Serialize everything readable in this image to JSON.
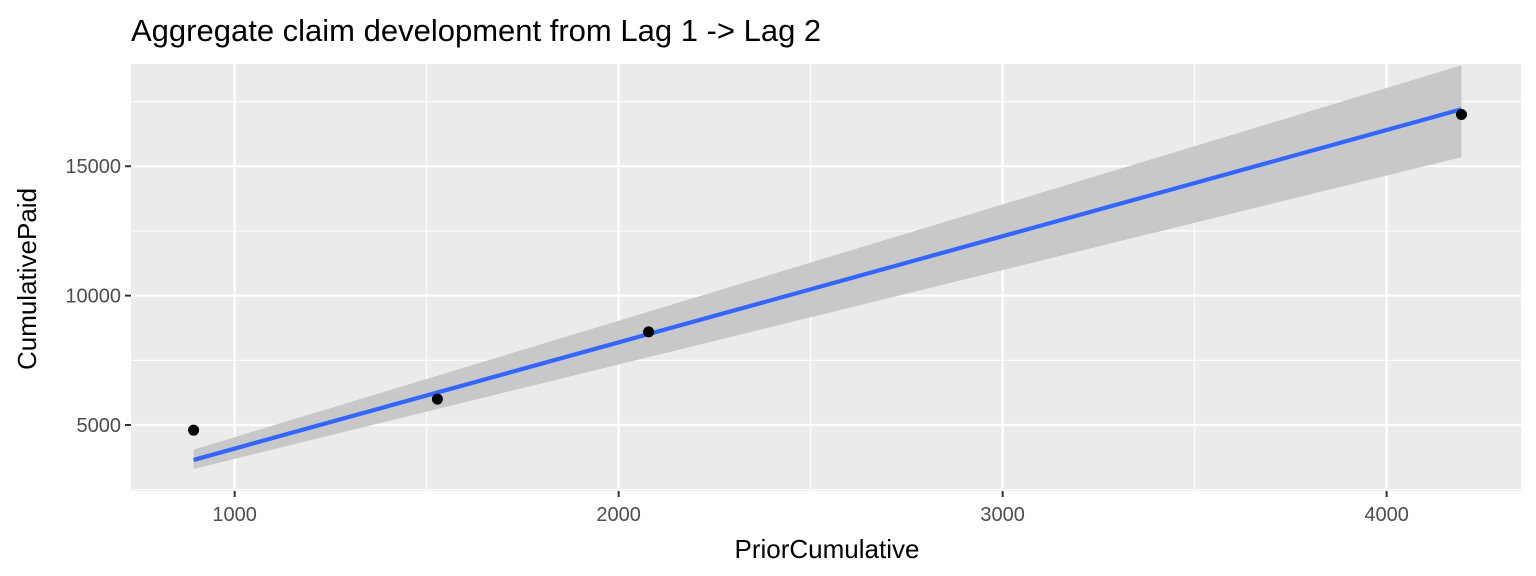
{
  "chart_data": {
    "type": "scatter",
    "title": "Aggregate claim development from Lag 1 -> Lag 2",
    "xlabel": "PriorCumulative",
    "ylabel": "CumulativePaid",
    "xlim": [
      730,
      4350
    ],
    "ylim": [
      2450,
      18950
    ],
    "x_ticks": [
      1000,
      2000,
      3000,
      4000
    ],
    "x_tick_labels": [
      "1000",
      "2000",
      "3000",
      "4000"
    ],
    "x_minor_ticks": [
      1500,
      2500,
      3500
    ],
    "y_ticks": [
      5000,
      10000,
      15000
    ],
    "y_tick_labels": [
      "5000",
      "10000",
      "15000"
    ],
    "y_minor_ticks": [
      2500,
      7500,
      12500,
      17500
    ],
    "grid": true,
    "points": [
      {
        "x": 893,
        "y": 4800
      },
      {
        "x": 1528,
        "y": 6000
      },
      {
        "x": 2078,
        "y": 8600
      },
      {
        "x": 4195,
        "y": 17000
      }
    ],
    "fit_line": {
      "method": "linear",
      "x": [
        893,
        4195
      ],
      "y": [
        3650,
        17200
      ],
      "ci_lower": [
        3300,
        15350
      ],
      "ci_upper": [
        4050,
        18900
      ]
    },
    "colors": {
      "panel": "#EBEBEB",
      "grid": "#FFFFFF",
      "points": "#000000",
      "fit": "#3366FF",
      "ribbon": "#C8C8C8"
    }
  }
}
